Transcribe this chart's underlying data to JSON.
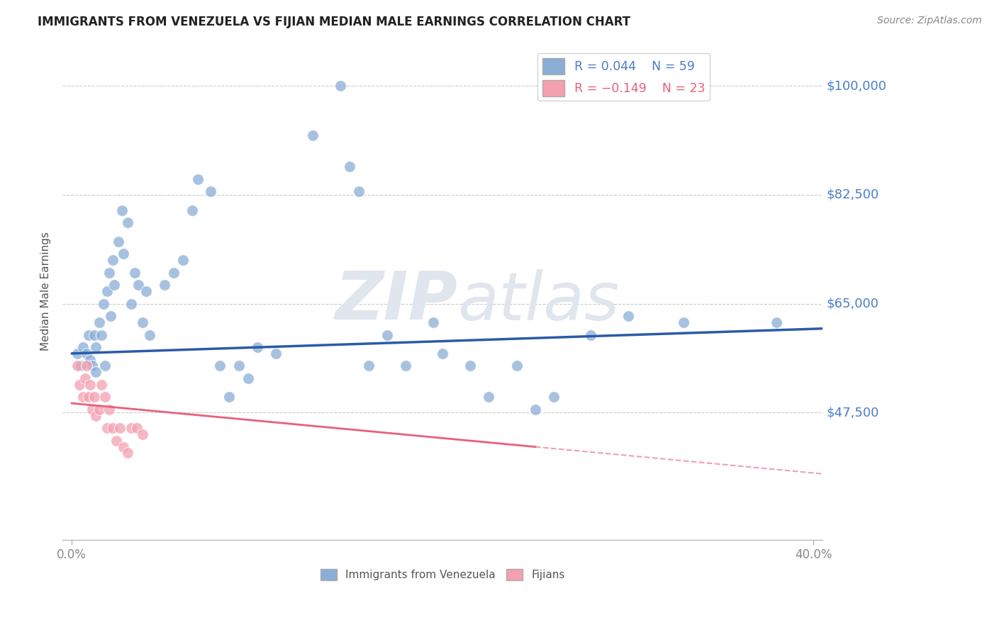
{
  "title": "IMMIGRANTS FROM VENEZUELA VS FIJIAN MEDIAN MALE EARNINGS CORRELATION CHART",
  "source": "Source: ZipAtlas.com",
  "ylabel": "Median Male Earnings",
  "xlim": [
    -0.005,
    0.405
  ],
  "ylim": [
    27000,
    107000
  ],
  "yticks": [
    100000,
    82500,
    65000,
    47500
  ],
  "ytick_labels": [
    "$100,000",
    "$82,500",
    "$65,000",
    "$47,500"
  ],
  "xtick_positions": [
    0.0,
    0.4
  ],
  "xtick_labels": [
    "0.0%",
    "40.0%"
  ],
  "legend_r1": "R = 0.044",
  "legend_n1": "N = 59",
  "legend_r2": "R = -0.149",
  "legend_n2": "N = 23",
  "blue_color": "#8AAED6",
  "pink_color": "#F4A0B0",
  "line_blue": "#2B5BA8",
  "line_pink": "#E8607A",
  "blue_scatter_x": [
    0.003,
    0.005,
    0.006,
    0.008,
    0.009,
    0.01,
    0.011,
    0.012,
    0.013,
    0.013,
    0.015,
    0.016,
    0.017,
    0.018,
    0.019,
    0.02,
    0.021,
    0.022,
    0.023,
    0.025,
    0.027,
    0.028,
    0.03,
    0.032,
    0.034,
    0.036,
    0.038,
    0.04,
    0.042,
    0.05,
    0.055,
    0.06,
    0.065,
    0.068,
    0.075,
    0.08,
    0.085,
    0.09,
    0.095,
    0.1,
    0.11,
    0.13,
    0.145,
    0.15,
    0.155,
    0.16,
    0.17,
    0.18,
    0.195,
    0.2,
    0.215,
    0.225,
    0.24,
    0.25,
    0.26,
    0.28,
    0.3,
    0.33,
    0.38
  ],
  "blue_scatter_y": [
    57000,
    55000,
    58000,
    57000,
    60000,
    56000,
    55000,
    60000,
    58000,
    54000,
    62000,
    60000,
    65000,
    55000,
    67000,
    70000,
    63000,
    72000,
    68000,
    75000,
    80000,
    73000,
    78000,
    65000,
    70000,
    68000,
    62000,
    67000,
    60000,
    68000,
    70000,
    72000,
    80000,
    85000,
    83000,
    55000,
    50000,
    55000,
    53000,
    58000,
    57000,
    92000,
    100000,
    87000,
    83000,
    55000,
    60000,
    55000,
    62000,
    57000,
    55000,
    50000,
    55000,
    48000,
    50000,
    60000,
    63000,
    62000,
    62000
  ],
  "pink_scatter_x": [
    0.003,
    0.004,
    0.006,
    0.007,
    0.008,
    0.009,
    0.01,
    0.011,
    0.012,
    0.013,
    0.015,
    0.016,
    0.018,
    0.019,
    0.02,
    0.022,
    0.024,
    0.026,
    0.028,
    0.03,
    0.032,
    0.035,
    0.038
  ],
  "pink_scatter_y": [
    55000,
    52000,
    50000,
    53000,
    55000,
    50000,
    52000,
    48000,
    50000,
    47000,
    48000,
    52000,
    50000,
    45000,
    48000,
    45000,
    43000,
    45000,
    42000,
    41000,
    45000,
    45000,
    44000
  ],
  "blue_line_x0": 0.0,
  "blue_line_x1": 0.405,
  "blue_line_y0": 57000,
  "blue_line_y1": 61000,
  "pink_line_solid_x0": 0.0,
  "pink_line_solid_x1": 0.25,
  "pink_line_y0": 49000,
  "pink_line_y1": 42000,
  "pink_line_dash_x0": 0.25,
  "pink_line_dash_x1": 0.405,
  "title_fontsize": 12,
  "ytick_color": "#4B7DC8",
  "xtick_color": "#888888",
  "ylabel_color": "#555555",
  "background_color": "#FFFFFF",
  "grid_color": "#CCCCCC",
  "watermark_color": "#E0E5EE"
}
